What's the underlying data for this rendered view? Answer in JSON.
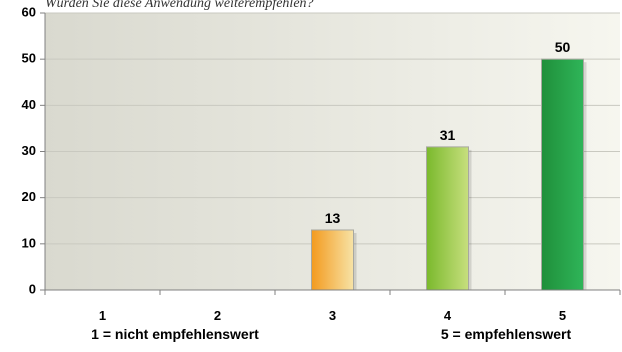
{
  "top_text": "Würden Sie diese Anwendung weiterempfehlen?",
  "chart_data": {
    "type": "bar",
    "categories": [
      "1",
      "2",
      "3",
      "4",
      "5"
    ],
    "values": [
      0,
      0,
      13,
      31,
      50
    ],
    "data_labels": [
      "",
      "",
      "13",
      "31",
      "50"
    ],
    "ylim": [
      0,
      60
    ],
    "yticks": [
      "0",
      "10",
      "20",
      "30",
      "40",
      "50",
      "60"
    ],
    "grid": true,
    "legend": "none",
    "annotations": [
      "1 = nicht empfehlenswert",
      "5 = empfehlenswert"
    ],
    "colors": {
      "bar_3_top": "#f39a1e",
      "bar_3_bottom": "#f7e3a6",
      "bar_4_top": "#7ab92c",
      "bar_4_bottom": "#c7df7e",
      "bar_5_top": "#1f8f3a",
      "bar_5_bottom": "#2fb559",
      "plot_background_left": "#d9d9cf",
      "plot_background_right": "#f6f6ef"
    }
  }
}
